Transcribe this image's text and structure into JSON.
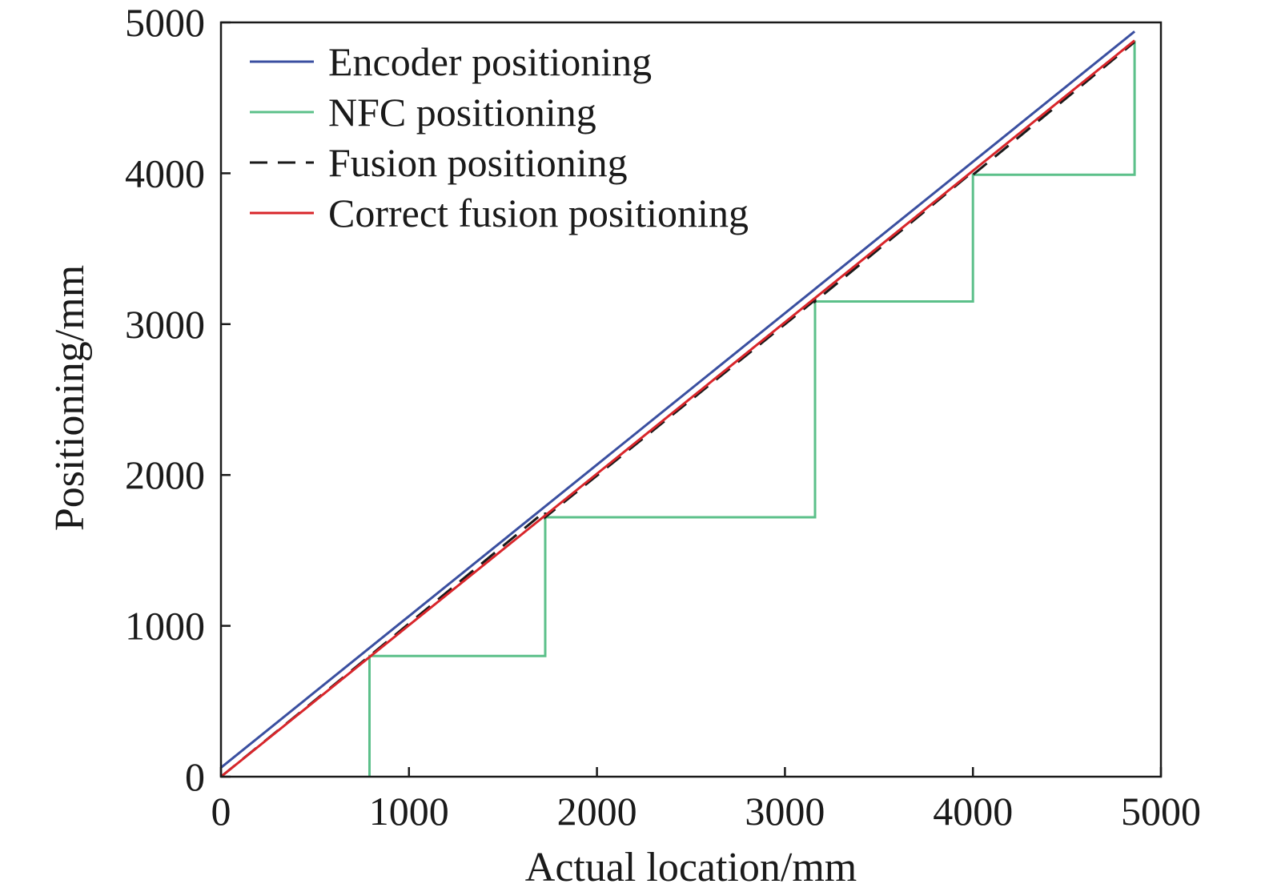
{
  "chart_data": {
    "type": "line",
    "title": "",
    "xlabel": "Actual location/mm",
    "ylabel": "Positioning/mm",
    "xlim": [
      0,
      5000
    ],
    "ylim": [
      0,
      5000
    ],
    "xticks": [
      0,
      1000,
      2000,
      3000,
      4000,
      5000
    ],
    "yticks": [
      0,
      1000,
      2000,
      3000,
      4000,
      5000
    ],
    "xtick_labels": [
      "0",
      "1000",
      "2000",
      "3000",
      "4000",
      "5000"
    ],
    "ytick_labels": [
      "0",
      "1000",
      "2000",
      "3000",
      "4000",
      "5000"
    ],
    "grid": false,
    "legend_position": "top-left",
    "series": [
      {
        "name": "Encoder positioning",
        "color": "#3a4fa0",
        "style": "solid",
        "x": [
          0,
          4860
        ],
        "y": [
          60,
          4940
        ]
      },
      {
        "name": "NFC positioning",
        "color": "#5cc08a",
        "style": "solid",
        "x": [
          790,
          790,
          1725,
          1725,
          3160,
          3160,
          4000,
          4000,
          4860,
          4860
        ],
        "y": [
          0,
          800,
          800,
          1720,
          1720,
          3150,
          3150,
          3990,
          3990,
          4880
        ]
      },
      {
        "name": "Fusion positioning",
        "color": "#1a1a1a",
        "style": "dashed",
        "x": [
          0,
          790,
          1725,
          1725,
          3160,
          3160,
          4000,
          4000,
          4860
        ],
        "y": [
          0,
          800,
          1760,
          1720,
          3160,
          3150,
          4010,
          3990,
          4870
        ]
      },
      {
        "name": "Correct fusion positioning",
        "color": "#d8252a",
        "style": "solid",
        "x": [
          0,
          4860
        ],
        "y": [
          0,
          4880
        ]
      }
    ]
  }
}
